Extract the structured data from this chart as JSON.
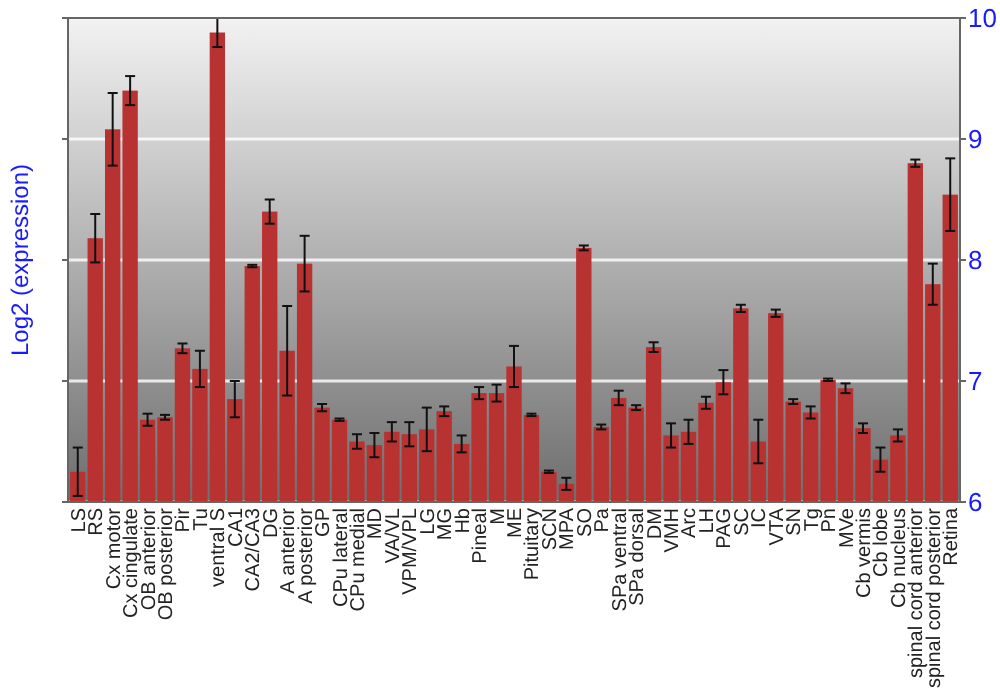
{
  "chart_data": {
    "type": "bar",
    "ylabel": "Log2 (expression)",
    "categories": [
      "LS",
      "RS",
      "Cx motor",
      "Cx cingulate",
      "OB anterior",
      "OB posterior",
      "Pir",
      "Tu",
      "ventral S",
      "CA1",
      "CA2/CA3",
      "DG",
      "A anterior",
      "A posterior",
      "GP",
      "CPu lateral",
      "CPu medial",
      "MD",
      "VA/VL",
      "VPM/VPL",
      "LG",
      "MG",
      "Hb",
      "Pineal",
      "M",
      "ME",
      "Pituitary",
      "SCN",
      "MPA",
      "SO",
      "Pa",
      "SPa ventral",
      "SPa dorsal",
      "DM",
      "VMH",
      "Arc",
      "LH",
      "PAG",
      "SC",
      "IC",
      "VTA",
      "SN",
      "Tg",
      "Pn",
      "MVe",
      "Cb vermis",
      "Cb lobe",
      "Cb nucleus",
      "spinal cord anterior",
      "spinal cord posterior",
      "Retina"
    ],
    "values": [
      6.25,
      8.18,
      9.08,
      9.4,
      6.68,
      6.7,
      7.27,
      7.1,
      9.88,
      6.85,
      7.95,
      8.4,
      7.25,
      7.97,
      6.78,
      6.68,
      6.5,
      6.47,
      6.58,
      6.56,
      6.6,
      6.75,
      6.48,
      6.9,
      6.9,
      7.12,
      6.72,
      6.25,
      6.15,
      8.1,
      6.62,
      6.86,
      6.78,
      7.28,
      6.55,
      6.58,
      6.82,
      6.99,
      7.6,
      6.5,
      7.56,
      6.83,
      6.74,
      7.01,
      6.94,
      6.61,
      6.35,
      6.55,
      8.8,
      7.8,
      8.54
    ],
    "errors": [
      0.2,
      0.2,
      0.3,
      0.12,
      0.05,
      0.02,
      0.04,
      0.15,
      0.12,
      0.15,
      0.01,
      0.1,
      0.37,
      0.23,
      0.03,
      0.01,
      0.06,
      0.1,
      0.08,
      0.1,
      0.18,
      0.04,
      0.07,
      0.05,
      0.07,
      0.17,
      0.01,
      0.01,
      0.05,
      0.02,
      0.02,
      0.06,
      0.02,
      0.04,
      0.1,
      0.1,
      0.05,
      0.1,
      0.03,
      0.18,
      0.03,
      0.02,
      0.05,
      0.01,
      0.04,
      0.04,
      0.1,
      0.05,
      0.03,
      0.17,
      0.3
    ],
    "color": "#b83232",
    "ylim": [
      6,
      10
    ],
    "yticks": [
      6,
      7,
      8,
      9,
      10
    ],
    "grid": "y"
  }
}
